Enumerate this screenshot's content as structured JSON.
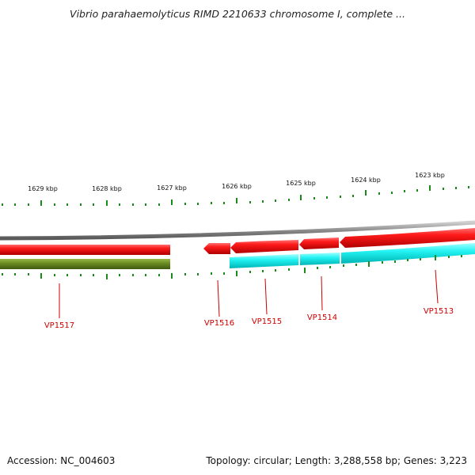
{
  "title": "Vibrio parahaemolyticus RIMD 2210633 chromosome I, complete ...",
  "footer": {
    "accession": "Accession: NC_004603",
    "summary": "Topology: circular; Length: 3,288,558 bp; Genes: 3,223"
  },
  "colors": {
    "backbone": "#8c8c8c",
    "forward_gene": "#ff1010",
    "reverse_gene": "#ff1010",
    "reverse_cds": "#20f0f0",
    "other_feature": "#6b8e23",
    "tick": "#1a8a1a",
    "gene_label": "#cc0000"
  },
  "scale_labels": [
    {
      "kbp": 1629,
      "label": "1629 kbp"
    },
    {
      "kbp": 1628,
      "label": "1628 kbp"
    },
    {
      "kbp": 1627,
      "label": "1627 kbp"
    },
    {
      "kbp": 1626,
      "label": "1626 kbp"
    },
    {
      "kbp": 1625,
      "label": "1625 kbp"
    },
    {
      "kbp": 1624,
      "label": "1624 kbp"
    },
    {
      "kbp": 1623,
      "label": "1623 kbp"
    }
  ],
  "genes": [
    {
      "locus": "VP1517",
      "label": "VP1517"
    },
    {
      "locus": "VP1516",
      "label": "VP1516"
    },
    {
      "locus": "VP1515",
      "label": "VP1515"
    },
    {
      "locus": "VP1514",
      "label": "VP1514"
    },
    {
      "locus": "VP1513",
      "label": "VP1513"
    }
  ]
}
